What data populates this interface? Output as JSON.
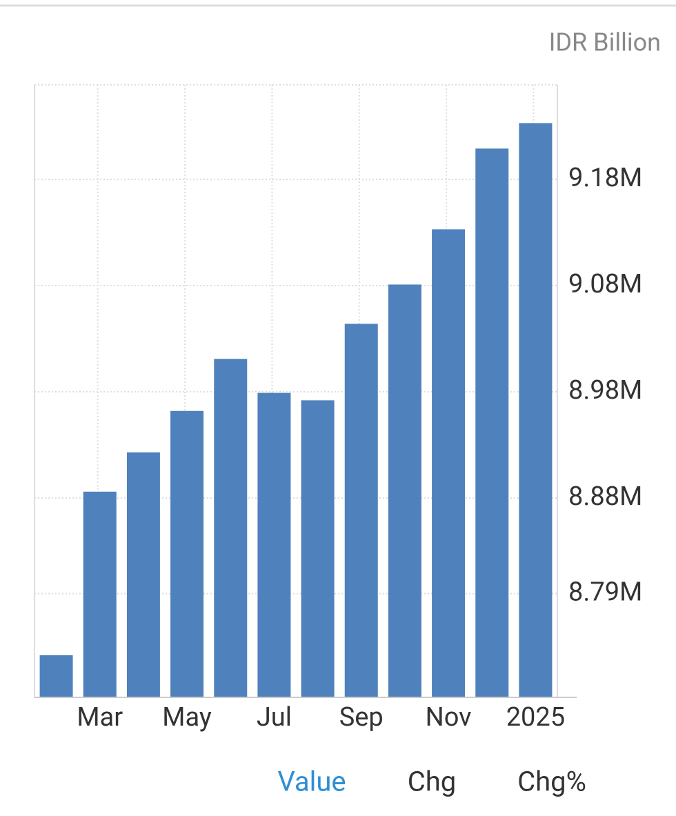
{
  "chart_data": {
    "type": "bar",
    "y_label": "IDR Billion",
    "categories": [
      null,
      "Mar",
      null,
      "May",
      null,
      "Jul",
      null,
      "Sep",
      null,
      "Nov",
      null,
      "2025"
    ],
    "values": [
      8732000,
      8886000,
      8923000,
      8962000,
      9011000,
      8979000,
      8972000,
      9044000,
      9081000,
      9133000,
      9209000,
      9233000
    ],
    "color": "#4f81bd",
    "ylim": [
      8693000,
      9269000
    ],
    "yticks": [
      {
        "value": 8790000,
        "label": "8.79M"
      },
      {
        "value": 8880000,
        "label": "8.88M"
      },
      {
        "value": 8980000,
        "label": "8.98M"
      },
      {
        "value": 9080000,
        "label": "9.08M"
      },
      {
        "value": 9180000,
        "label": "9.18M"
      }
    ],
    "grid": true,
    "y_axis_side": "right"
  },
  "tabs": {
    "items": [
      "Value",
      "Chg",
      "Chg%"
    ],
    "active": 0
  }
}
